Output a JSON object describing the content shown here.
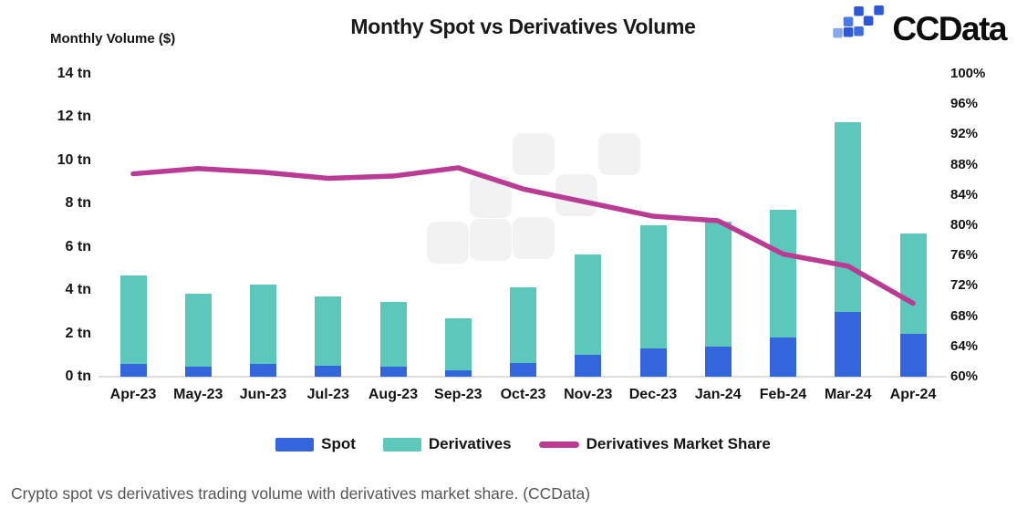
{
  "header": {
    "y_axis_title": "Monthly Volume ($)",
    "title": "Monthy Spot vs Derivatives Volume",
    "logo_text": "CCData",
    "logo_colors": {
      "dark": "#2b57d8",
      "mid": "#4a7ae8",
      "light": "#8aa8ee"
    }
  },
  "chart_data": {
    "type": "bar",
    "subtype": "stacked-bars-with-line",
    "title": "Monthy Spot vs Derivatives Volume",
    "categories": [
      "Apr-23",
      "May-23",
      "Jun-23",
      "Jul-23",
      "Aug-23",
      "Sep-23",
      "Oct-23",
      "Nov-23",
      "Dec-23",
      "Jan-24",
      "Feb-24",
      "Mar-24",
      "Apr-24"
    ],
    "series": [
      {
        "name": "Spot",
        "type": "bar",
        "stack": true,
        "color": "#3365dd",
        "axis": "left",
        "unit": "tn",
        "values": [
          0.6,
          0.45,
          0.6,
          0.5,
          0.45,
          0.3,
          0.65,
          1.0,
          1.3,
          1.4,
          1.8,
          3.0,
          2.0
        ]
      },
      {
        "name": "Derivatives",
        "type": "bar",
        "stack": true,
        "color": "#5cc8bc",
        "axis": "left",
        "unit": "tn",
        "values": [
          4.1,
          3.4,
          3.65,
          3.2,
          3.0,
          2.4,
          3.5,
          4.65,
          5.7,
          5.75,
          5.9,
          8.75,
          4.6
        ]
      },
      {
        "name": "Derivatives Market Share",
        "type": "line",
        "color": "#ba3b94",
        "axis": "right",
        "unit": "%",
        "values": [
          86.8,
          87.5,
          87.0,
          86.2,
          86.5,
          87.6,
          84.8,
          83.0,
          81.2,
          80.6,
          76.2,
          74.6,
          69.7
        ]
      }
    ],
    "left_axis": {
      "title": "Monthly Volume ($)",
      "min": 0,
      "max": 14,
      "step": 2,
      "ticks": [
        {
          "value": 14,
          "label": "14 tn"
        },
        {
          "value": 12,
          "label": "12 tn"
        },
        {
          "value": 10,
          "label": "10 tn"
        },
        {
          "value": 8,
          "label": "8 tn"
        },
        {
          "value": 6,
          "label": "6 tn"
        },
        {
          "value": 4,
          "label": "4 tn"
        },
        {
          "value": 2,
          "label": "2 tn"
        },
        {
          "value": 0,
          "label": "0 tn"
        }
      ]
    },
    "right_axis": {
      "min": 60,
      "max": 100,
      "step": 4,
      "ticks": [
        {
          "value": 100,
          "label": "100%"
        },
        {
          "value": 96,
          "label": "96%"
        },
        {
          "value": 92,
          "label": "92%"
        },
        {
          "value": 88,
          "label": "88%"
        },
        {
          "value": 84,
          "label": "84%"
        },
        {
          "value": 80,
          "label": "80%"
        },
        {
          "value": 76,
          "label": "76%"
        },
        {
          "value": 72,
          "label": "72%"
        },
        {
          "value": 68,
          "label": "68%"
        },
        {
          "value": 64,
          "label": "64%"
        },
        {
          "value": 60,
          "label": "60%"
        }
      ]
    },
    "grid": false,
    "legend_position": "bottom"
  },
  "legend": {
    "items": [
      {
        "label": "Spot",
        "swatch": "rect",
        "color": "#3365dd"
      },
      {
        "label": "Derivatives",
        "swatch": "rect",
        "color": "#5cc8bc"
      },
      {
        "label": "Derivatives Market Share",
        "swatch": "line",
        "color": "#ba3b94"
      }
    ]
  },
  "caption": "Crypto spot vs derivatives trading volume with derivatives market share. (CCData)"
}
